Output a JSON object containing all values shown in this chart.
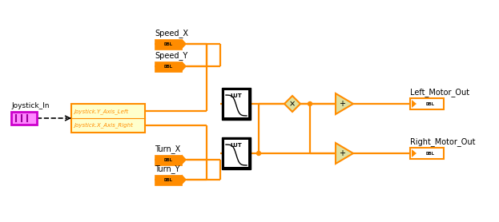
{
  "bg_color": "#ffffff",
  "orange": "#FF8C00",
  "magenta_fill": "#FF88FF",
  "magenta_edge": "#CC00CC",
  "yellow_fill": "#FFFFCC",
  "black": "#000000",
  "lw": 1.6,
  "joystick_in_label": "Joystick_In",
  "joy_labels": [
    "Joystick.Y_Axis_Left",
    "Joystick.X_Axis_Right"
  ],
  "speed_x_label": "Speed_X",
  "speed_y_label": "Speed_Y",
  "turn_x_label": "Turn_X",
  "turn_y_label": "Turn_Y",
  "left_motor_label": "Left_Motor_Out",
  "right_motor_label": "Right_Motor_Out",
  "lut_label": "LUT",
  "dbl_label": "DBL",
  "tri_fill": "#E0E0A0",
  "dot_r": 2.5
}
